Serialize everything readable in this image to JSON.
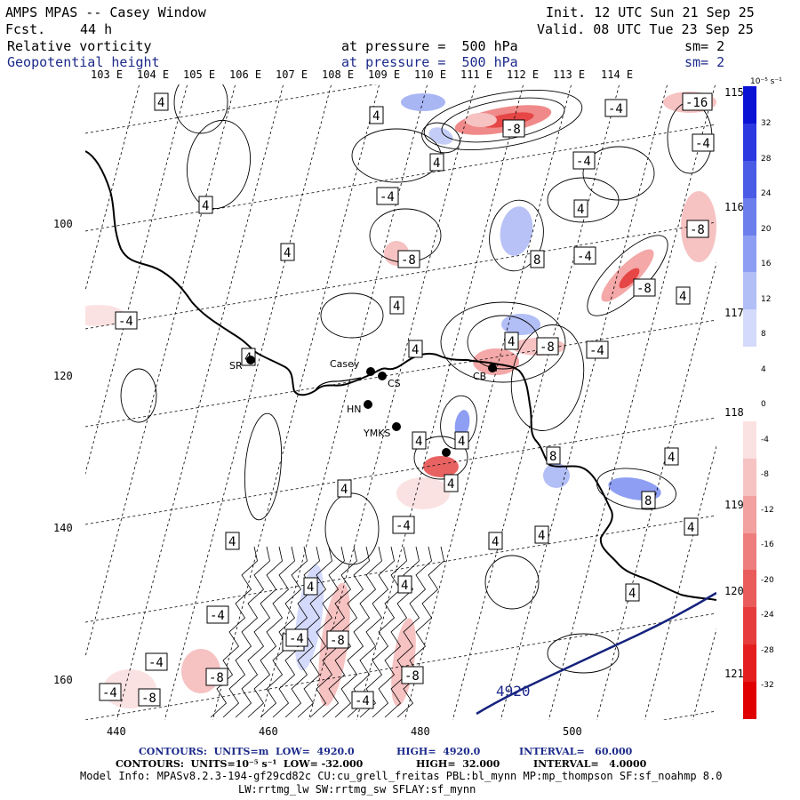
{
  "header": {
    "title": "AMPS MPAS -- Casey Window",
    "fcst_label": "Fcst.",
    "fcst_value": "44 h",
    "init": "Init. 12 UTC Sun 21 Sep 25",
    "valid": "Valid. 08 UTC Tue 23 Sep 25",
    "field1": "Relative vorticity",
    "field1_level": "at pressure =  500 hPa",
    "field1_sm": "sm= 2",
    "field2": "Geopotential height",
    "field2_level": "at pressure =  500 hPa",
    "field2_sm": "sm= 2"
  },
  "colors": {
    "positive": "#e83030",
    "negative": "#2c36c8",
    "height_contour": "#16237e",
    "coast": "#000000"
  },
  "map": {
    "lon_labels": [
      "103 E",
      "104 E",
      "105 E",
      "106 E",
      "107 E",
      "108 E",
      "109 E",
      "110 E",
      "111 E",
      "112 E",
      "113 E",
      "114 E"
    ],
    "lat_labels": [
      "115 E",
      "116 E",
      "117 E",
      "118 E",
      "119 E",
      "120 E",
      "121 E"
    ],
    "y_axis": [
      "100",
      "120",
      "140",
      "160"
    ],
    "x_axis": [
      "440",
      "460",
      "480",
      "500"
    ],
    "stations": [
      {
        "id": "SR",
        "label": "SR"
      },
      {
        "id": "casey",
        "label": "Casey"
      },
      {
        "id": "cs",
        "label": "CS"
      },
      {
        "id": "hn",
        "label": "HN"
      },
      {
        "id": "ymks",
        "label": "YMKS"
      },
      {
        "id": "cb",
        "label": "CB"
      },
      {
        "id": "unlabeled",
        "label": ""
      }
    ],
    "height_contour_label": "4920",
    "vorticity_labels": [
      "4",
      "-4",
      "-8",
      "8",
      "-16"
    ]
  },
  "colorbar": {
    "unit": "10⁻⁵ s⁻¹",
    "ticks": [
      "32",
      "28",
      "24",
      "20",
      "16",
      "12",
      "8",
      "4",
      "0",
      "-4",
      "-8",
      "-12",
      "-16",
      "-20",
      "-24",
      "-28",
      "-32"
    ],
    "colors": [
      "#0a12d4",
      "#2a3ae0",
      "#4a5ce6",
      "#6c7eec",
      "#8e9ef2",
      "#b2bef6",
      "#d4dafb",
      "#ffffff",
      "#ffffff",
      "#fbe2e2",
      "#f6c2c2",
      "#f2a0a0",
      "#ee7e7e",
      "#ea5c5c",
      "#e63c3c",
      "#e41e1e",
      "#e00000"
    ]
  },
  "footer": {
    "line1_contours": "CONTOURS:  UNITS=m  LOW=  4920.0",
    "line1_high": "HIGH=  4920.0",
    "line1_interval": "INTERVAL=   60.000",
    "line2_contours": "CONTOURS:  UNITS=10⁻⁵ s⁻¹  LOW= -32.000",
    "line2_high": "HIGH=  32.000",
    "line2_interval": "INTERVAL=   4.0000",
    "model_info": "Model Info: MPASv8.2.3-194-gf29cd82c CU:cu_grell_freitas PBL:bl_mynn MP:mp_thompson SF:sf_noahmp 8.0",
    "model_info2": "LW:rrtmg_lw SW:rrtmg_sw SFLAY:sf_mynn"
  }
}
